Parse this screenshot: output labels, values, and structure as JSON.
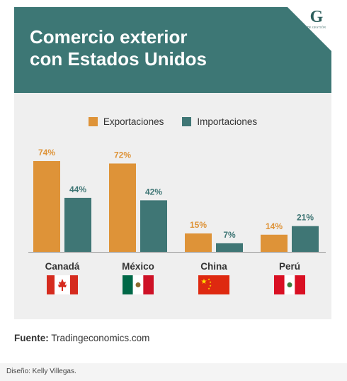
{
  "header": {
    "title_line1": "Comercio exterior",
    "title_line2": "con Estados Unidos",
    "logo_letter": "G",
    "logo_text": "DE GESTIÓN"
  },
  "colors": {
    "header_bg": "#3d7775",
    "exports": "#de9338",
    "imports": "#3f7675",
    "card_bg": "#efefef"
  },
  "chart_data": {
    "type": "bar",
    "categories": [
      "Canadá",
      "México",
      "China",
      "Perú"
    ],
    "series": [
      {
        "name": "Exportaciones",
        "values": [
          74,
          72,
          15,
          14
        ]
      },
      {
        "name": "Importaciones",
        "values": [
          44,
          42,
          7,
          21
        ]
      }
    ],
    "value_labels": {
      "Exportaciones": [
        "74%",
        "72%",
        "15%",
        "14%"
      ],
      "Importaciones": [
        "44%",
        "42%",
        "7%",
        "21%"
      ]
    },
    "ylim": [
      0,
      100
    ],
    "flags": [
      "canada-flag",
      "mexico-flag",
      "china-flag",
      "peru-flag"
    ],
    "legend": "top-center",
    "grid": false
  },
  "source": {
    "label": "Fuente:",
    "value": "Tradingeconomics.com"
  },
  "credit": "Diseño: Kelly Villegas."
}
